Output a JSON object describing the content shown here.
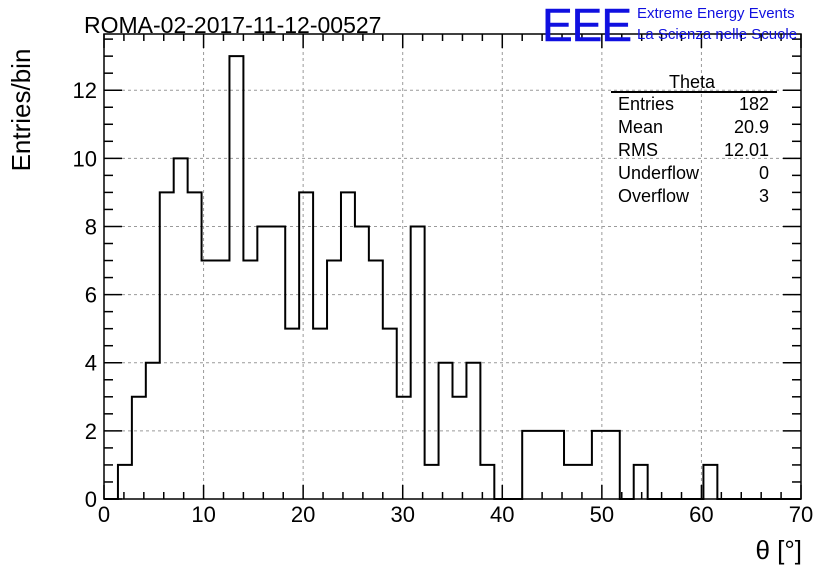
{
  "chart_data": {
    "type": "bar",
    "title": "ROMA-02-2017-11-12-00527",
    "xlabel": "θ [°]",
    "ylabel": "Entries/bin",
    "xlim": [
      0,
      70
    ],
    "ylim": [
      0,
      13.65
    ],
    "grid": true,
    "bin_edges": [
      0,
      1.4,
      2.8,
      4.2,
      5.6,
      7.0,
      8.4,
      9.8,
      11.2,
      12.6,
      14.0,
      15.4,
      16.8,
      18.2,
      19.6,
      21.0,
      22.4,
      23.8,
      25.2,
      26.6,
      28.0,
      29.4,
      30.8,
      32.2,
      33.6,
      35.0,
      36.4,
      37.8,
      39.2,
      40.6,
      42.0,
      43.4,
      44.8,
      46.2,
      47.6,
      49.0,
      50.4,
      51.8,
      53.2,
      54.6,
      56.0,
      57.4,
      58.8,
      60.2,
      61.6,
      63.0,
      64.4,
      65.8,
      67.2,
      68.6,
      70.0
    ],
    "values": [
      0,
      1,
      3,
      4,
      9,
      10,
      9,
      7,
      7,
      13,
      7,
      8,
      8,
      5,
      9,
      5,
      7,
      9,
      8,
      7,
      5,
      3,
      8,
      1,
      4,
      3,
      4,
      1,
      0,
      0,
      2,
      2,
      2,
      1,
      1,
      2,
      2,
      0,
      1,
      0,
      0,
      0,
      0,
      1,
      0,
      0,
      0,
      0,
      0,
      0
    ],
    "x_ticks": [
      0,
      10,
      20,
      30,
      40,
      50,
      60,
      70
    ],
    "y_ticks": [
      0,
      2,
      4,
      6,
      8,
      10,
      12
    ],
    "stats_box": {
      "title": "Theta",
      "rows": [
        {
          "label": "Entries",
          "value": "182"
        },
        {
          "label": "Mean",
          "value": "20.9"
        },
        {
          "label": "RMS",
          "value": "12.01"
        },
        {
          "label": "Underflow",
          "value": "0"
        },
        {
          "label": "Overflow",
          "value": "3"
        }
      ]
    }
  },
  "logo": {
    "mark": "EEE",
    "line1": "Extreme Energy Events",
    "line2": "La Scienza nelle Scuole",
    "color": "#1010e0"
  }
}
